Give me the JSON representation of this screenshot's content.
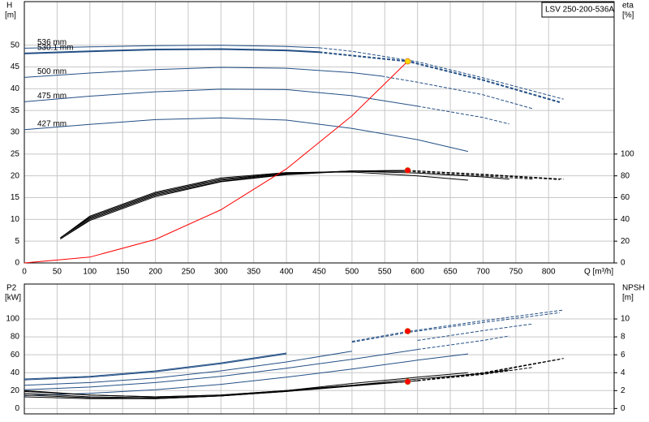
{
  "chart_data": [
    {
      "type": "line",
      "label": "LSV 250-200-536A",
      "xlabel": "Q [m³/h]",
      "ylabel": "H",
      "yunit": "[m]",
      "y2label": "eta",
      "y2unit": "[%]",
      "xlim": [
        0,
        900
      ],
      "xticks": [
        0,
        50,
        100,
        150,
        200,
        250,
        300,
        350,
        400,
        450,
        500,
        550,
        600,
        650,
        700,
        750,
        800
      ],
      "ylim": [
        0,
        60
      ],
      "yticks": [
        0,
        5,
        10,
        15,
        20,
        25,
        30,
        35,
        40,
        45,
        50
      ],
      "y2lim": [
        0,
        240
      ],
      "y2ticks": [
        0,
        20,
        40,
        60,
        80,
        100
      ],
      "grid": true,
      "series": [
        {
          "name": "536 mm",
          "color": "#234f85",
          "width": 1,
          "dash_from": 450,
          "x": [
            0,
            100,
            200,
            300,
            400,
            450,
            500,
            600,
            700,
            823
          ],
          "values": [
            49.3,
            49.6,
            49.9,
            50,
            49.7,
            49.4,
            48.6,
            46.2,
            42.5,
            37.6
          ]
        },
        {
          "name": "530.1 mm",
          "color": "#234f85",
          "width": 2,
          "dash_from": 450,
          "x": [
            0,
            100,
            200,
            300,
            400,
            450,
            500,
            585,
            700,
            817
          ],
          "values": [
            48.1,
            48.6,
            49,
            49.1,
            48.8,
            48.4,
            47.6,
            46.3,
            42,
            36.9
          ]
        },
        {
          "name": "500 mm",
          "color": "#234f85",
          "width": 1,
          "dash_from": 545,
          "x": [
            0,
            100,
            200,
            300,
            400,
            500,
            545,
            600,
            700,
            776
          ],
          "values": [
            42.6,
            43.6,
            44.4,
            44.9,
            44.7,
            43.7,
            42.9,
            41.5,
            38.6,
            35.4
          ]
        },
        {
          "name": "475 mm",
          "color": "#234f85",
          "width": 1,
          "dash_from": 600,
          "x": [
            0,
            100,
            200,
            300,
            400,
            500,
            600,
            700,
            740
          ],
          "values": [
            37,
            38.3,
            39.3,
            39.9,
            39.8,
            38.4,
            36,
            33.4,
            31.9
          ]
        },
        {
          "name": "427 mm",
          "color": "#234f85",
          "width": 1,
          "x": [
            0,
            100,
            200,
            300,
            400,
            500,
            600,
            677
          ],
          "values": [
            30.6,
            31.8,
            32.9,
            33.3,
            32.8,
            30.9,
            28.3,
            25.6
          ]
        },
        {
          "color": "#000000",
          "width": 1,
          "axis": "y2",
          "dash_from": 585,
          "x": [
            55,
            100,
            200,
            300,
            400,
            500,
            585,
            700,
            823
          ],
          "values": [
            22,
            40,
            62,
            75,
            81.5,
            84.5,
            85,
            81.5,
            77
          ]
        },
        {
          "color": "#000000",
          "width": 1,
          "axis": "y2",
          "dash_from": 585,
          "x": [
            55,
            100,
            200,
            300,
            400,
            500,
            585,
            700,
            817
          ],
          "values": [
            22,
            39,
            61,
            74.5,
            81,
            84.3,
            85,
            81,
            76.5
          ]
        },
        {
          "color": "#000000",
          "width": 1,
          "axis": "y2",
          "dash_from": 585,
          "x": [
            55,
            100,
            200,
            300,
            400,
            500,
            585,
            700,
            776
          ],
          "values": [
            23,
            41,
            63,
            76,
            82,
            84.5,
            84,
            80,
            77
          ]
        },
        {
          "color": "#000000",
          "width": 1,
          "axis": "y2",
          "x": [
            55,
            100,
            200,
            300,
            400,
            500,
            600,
            700,
            740
          ],
          "values": [
            23,
            42,
            64,
            77,
            82.5,
            84.2,
            82.5,
            79,
            77
          ]
        },
        {
          "color": "#000000",
          "width": 1,
          "axis": "y2",
          "x": [
            55,
            100,
            200,
            300,
            400,
            500,
            600,
            677
          ],
          "values": [
            23,
            43,
            65,
            78,
            83,
            83.5,
            80,
            76
          ]
        },
        {
          "color": "#ff0000",
          "width": 1,
          "x": [
            0,
            100,
            200,
            300,
            400,
            500,
            585
          ],
          "values": [
            0,
            1.35,
            5.4,
            12.2,
            21.6,
            33.8,
            46.3
          ]
        }
      ],
      "points": [
        {
          "x": 585,
          "y": 46.3,
          "color": "#ffd700"
        },
        {
          "x": 585,
          "y": 85,
          "axis": "y2",
          "color": "#ff0000"
        }
      ]
    },
    {
      "type": "line",
      "ylabel": "P2",
      "yunit": "[kW]",
      "y2label": "NPSH",
      "y2unit": "[m]",
      "xlim": [
        0,
        900
      ],
      "xticks": [
        0,
        50,
        100,
        150,
        200,
        250,
        300,
        350,
        400,
        450,
        500,
        550,
        600,
        650,
        700,
        750,
        800
      ],
      "ylim": [
        -6,
        139
      ],
      "yticks": [
        0,
        20,
        40,
        60,
        80,
        100
      ],
      "y2lim": [
        -0.6,
        13.9
      ],
      "y2ticks": [
        0,
        2,
        4,
        6,
        8,
        10
      ],
      "grid": true,
      "series": [
        {
          "color": "#234f85",
          "width": 1,
          "dash_from": 450,
          "x": [
            0,
            100,
            200,
            300,
            400,
            500,
            585,
            700,
            823
          ],
          "values": [
            33,
            36,
            42,
            51,
            62,
            75,
            86,
            98,
            110
          ]
        },
        {
          "color": "#234f85",
          "width": 1,
          "dash_from": 450,
          "x": [
            0,
            100,
            200,
            300,
            400,
            500,
            585,
            700,
            817
          ],
          "values": [
            32,
            35,
            41,
            50,
            61,
            74,
            85,
            96,
            107
          ]
        },
        {
          "color": "#234f85",
          "width": 1,
          "dash_from": 545,
          "x": [
            0,
            100,
            200,
            300,
            400,
            500,
            600,
            700,
            776
          ],
          "values": [
            26,
            29,
            34,
            42,
            52,
            64,
            76,
            87,
            94.5
          ]
        },
        {
          "color": "#234f85",
          "width": 1,
          "dash_from": 600,
          "x": [
            0,
            100,
            200,
            300,
            400,
            500,
            600,
            700,
            740
          ],
          "values": [
            21,
            24,
            29,
            36,
            45,
            55,
            66,
            76,
            81
          ]
        },
        {
          "color": "#234f85",
          "width": 1,
          "x": [
            0,
            100,
            200,
            300,
            400,
            500,
            600,
            677
          ],
          "values": [
            14.5,
            17,
            21,
            27,
            35,
            44,
            54,
            61
          ]
        },
        {
          "color": "#000000",
          "width": 1,
          "axis": "y2",
          "dash_from": 585,
          "x": [
            0,
            100,
            200,
            300,
            400,
            500,
            585,
            700,
            823
          ],
          "values": [
            2.0,
            1.5,
            1.3,
            1.5,
            2.0,
            2.6,
            3.0,
            4.0,
            5.6
          ]
        },
        {
          "color": "#000000",
          "width": 1,
          "axis": "y2",
          "dash_from": 585,
          "x": [
            0,
            100,
            200,
            300,
            400,
            500,
            585,
            700,
            817
          ],
          "values": [
            1.9,
            1.5,
            1.3,
            1.5,
            2.0,
            2.6,
            3.0,
            3.9,
            5.5
          ]
        },
        {
          "color": "#000000",
          "width": 1,
          "axis": "y2",
          "dash_from": 600,
          "x": [
            0,
            100,
            200,
            300,
            400,
            500,
            600,
            700,
            776
          ],
          "values": [
            1.7,
            1.3,
            1.2,
            1.4,
            1.9,
            2.5,
            3.1,
            3.8,
            4.6
          ]
        },
        {
          "color": "#000000",
          "width": 1,
          "axis": "y2",
          "x": [
            0,
            100,
            200,
            300,
            400,
            500,
            600,
            700,
            740
          ],
          "values": [
            1.5,
            1.2,
            1.1,
            1.4,
            1.9,
            2.6,
            3.3,
            3.9,
            4.3
          ]
        },
        {
          "color": "#000000",
          "width": 1,
          "axis": "y2",
          "x": [
            0,
            100,
            200,
            300,
            400,
            500,
            600,
            677
          ],
          "values": [
            1.3,
            1.1,
            1.1,
            1.4,
            2.0,
            2.8,
            3.5,
            4.0
          ]
        }
      ],
      "points": [
        {
          "x": 585,
          "y": 86.4,
          "color": "#ff0000"
        },
        {
          "x": 585,
          "y": 3.0,
          "axis": "y2",
          "color": "#ff0000"
        }
      ]
    }
  ]
}
